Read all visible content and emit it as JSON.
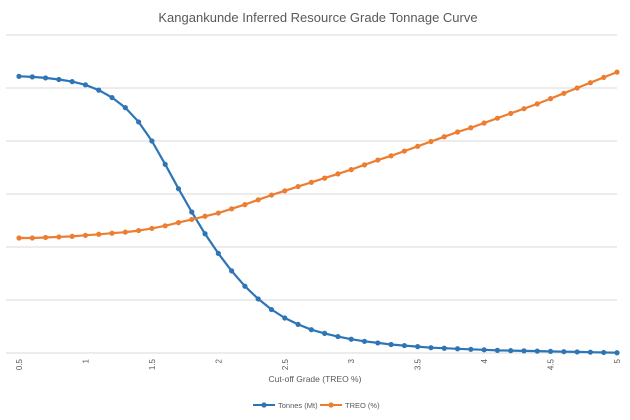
{
  "chart_data": {
    "type": "line",
    "title": "Kangankunde Inferred Resource Grade Tonnage Curve",
    "xlabel": "Cut-off Grade (TREO %)",
    "ylabel": "",
    "xlim": [
      0.5,
      5
    ],
    "ylim": [
      0,
      6
    ],
    "x_ticks": [
      "0.5",
      "1",
      "1.5",
      "2",
      "2.5",
      "3",
      "3.5",
      "4",
      "4.5",
      "5"
    ],
    "grid": true,
    "legend_position": "bottom",
    "x": [
      0.5,
      0.6,
      0.7,
      0.8,
      0.9,
      1.0,
      1.1,
      1.2,
      1.3,
      1.4,
      1.5,
      1.6,
      1.7,
      1.8,
      1.9,
      2.0,
      2.1,
      2.2,
      2.3,
      2.4,
      2.5,
      2.6,
      2.7,
      2.8,
      2.9,
      3.0,
      3.1,
      3.2,
      3.3,
      3.4,
      3.5,
      3.6,
      3.7,
      3.8,
      3.9,
      4.0,
      4.1,
      4.2,
      4.3,
      4.4,
      4.5,
      4.6,
      4.7,
      4.8,
      4.9,
      5.0
    ],
    "series": [
      {
        "name": "Tonnes (Mt)",
        "color": "#2e75b6",
        "values": [
          5.22,
          5.21,
          5.19,
          5.16,
          5.12,
          5.06,
          4.96,
          4.82,
          4.63,
          4.36,
          4.0,
          3.56,
          3.1,
          2.66,
          2.25,
          1.88,
          1.55,
          1.26,
          1.02,
          0.82,
          0.66,
          0.54,
          0.44,
          0.37,
          0.31,
          0.26,
          0.22,
          0.19,
          0.16,
          0.14,
          0.12,
          0.1,
          0.09,
          0.08,
          0.07,
          0.06,
          0.05,
          0.045,
          0.04,
          0.035,
          0.03,
          0.025,
          0.02,
          0.015,
          0.01,
          0.005
        ]
      },
      {
        "name": "TREO (%)",
        "color": "#ed7d31",
        "values": [
          2.17,
          2.17,
          2.18,
          2.19,
          2.2,
          2.22,
          2.24,
          2.26,
          2.28,
          2.31,
          2.35,
          2.4,
          2.46,
          2.52,
          2.58,
          2.64,
          2.72,
          2.8,
          2.89,
          2.98,
          3.06,
          3.14,
          3.22,
          3.3,
          3.38,
          3.46,
          3.55,
          3.64,
          3.72,
          3.81,
          3.9,
          3.99,
          4.08,
          4.17,
          4.25,
          4.34,
          4.43,
          4.52,
          4.61,
          4.7,
          4.8,
          4.9,
          5.0,
          5.1,
          5.2,
          5.3
        ]
      }
    ]
  }
}
